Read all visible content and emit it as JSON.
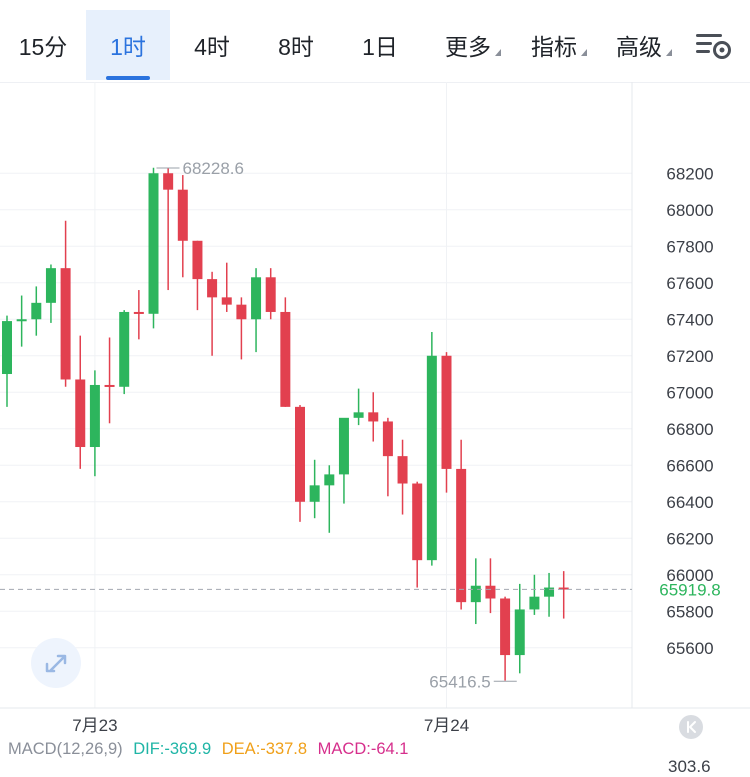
{
  "toolbar": {
    "tabs": [
      {
        "label": "15分",
        "active": false
      },
      {
        "label": "1时",
        "active": true
      },
      {
        "label": "4时",
        "active": false
      },
      {
        "label": "8时",
        "active": false
      },
      {
        "label": "1日",
        "active": false
      },
      {
        "label": "更多",
        "dropdown": true
      },
      {
        "label": "指标",
        "dropdown": true
      },
      {
        "label": "高级",
        "dropdown": true
      }
    ],
    "settings_icon": "chart-settings-icon"
  },
  "colors": {
    "up": "#2db55d",
    "down": "#e2404f",
    "accent": "#2b73de",
    "grid": "#f0f2f5",
    "axis_text": "#3c4048",
    "dif": "#1fb5a6",
    "dea": "#f0a019",
    "macd": "#d62f8c",
    "macd_label": "#8a8f99"
  },
  "chart_data": {
    "type": "candlestick",
    "interval": "1时",
    "x_labels": [
      {
        "index": 6,
        "label": "7月23"
      },
      {
        "index": 30,
        "label": "7月24"
      }
    ],
    "yticks": [
      68200,
      68000,
      67800,
      67600,
      67400,
      67200,
      67000,
      66800,
      66600,
      66400,
      66200,
      66000,
      65800,
      65600
    ],
    "ylim": [
      65270,
      68700
    ],
    "last_price": 65919.8,
    "last_price_label": "65919.8",
    "high_marker": {
      "index": 10,
      "value": 68228.6,
      "label": "68228.6"
    },
    "low_marker": {
      "index": 35,
      "value": 65416.5,
      "label": "65416.5"
    },
    "candles": [
      {
        "o": 67100,
        "h": 67420,
        "l": 66920,
        "c": 67390
      },
      {
        "o": 67390,
        "h": 67530,
        "l": 67250,
        "c": 67400
      },
      {
        "o": 67400,
        "h": 67580,
        "l": 67310,
        "c": 67490
      },
      {
        "o": 67490,
        "h": 67700,
        "l": 67380,
        "c": 67680
      },
      {
        "o": 67680,
        "h": 67940,
        "l": 67030,
        "c": 67070
      },
      {
        "o": 67070,
        "h": 67310,
        "l": 66580,
        "c": 66700
      },
      {
        "o": 66700,
        "h": 67120,
        "l": 66540,
        "c": 67040
      },
      {
        "o": 67040,
        "h": 67300,
        "l": 66830,
        "c": 67030
      },
      {
        "o": 67030,
        "h": 67450,
        "l": 66990,
        "c": 67440
      },
      {
        "o": 67440,
        "h": 67560,
        "l": 67290,
        "c": 67430
      },
      {
        "o": 67430,
        "h": 68230,
        "l": 67350,
        "c": 68200
      },
      {
        "o": 68200,
        "h": 68230,
        "l": 67560,
        "c": 68110
      },
      {
        "o": 68110,
        "h": 68190,
        "l": 67630,
        "c": 67830
      },
      {
        "o": 67830,
        "h": 67830,
        "l": 67450,
        "c": 67620
      },
      {
        "o": 67620,
        "h": 67660,
        "l": 67200,
        "c": 67520
      },
      {
        "o": 67520,
        "h": 67710,
        "l": 67440,
        "c": 67480
      },
      {
        "o": 67480,
        "h": 67520,
        "l": 67180,
        "c": 67400
      },
      {
        "o": 67400,
        "h": 67680,
        "l": 67220,
        "c": 67630
      },
      {
        "o": 67630,
        "h": 67680,
        "l": 67400,
        "c": 67440
      },
      {
        "o": 67440,
        "h": 67520,
        "l": 66920,
        "c": 66920
      },
      {
        "o": 66920,
        "h": 66930,
        "l": 66290,
        "c": 66400
      },
      {
        "o": 66400,
        "h": 66630,
        "l": 66310,
        "c": 66490
      },
      {
        "o": 66490,
        "h": 66600,
        "l": 66230,
        "c": 66550
      },
      {
        "o": 66550,
        "h": 66840,
        "l": 66390,
        "c": 66860
      },
      {
        "o": 66860,
        "h": 67020,
        "l": 66820,
        "c": 66890
      },
      {
        "o": 66890,
        "h": 67000,
        "l": 66730,
        "c": 66840
      },
      {
        "o": 66840,
        "h": 66860,
        "l": 66430,
        "c": 66650
      },
      {
        "o": 66650,
        "h": 66740,
        "l": 66330,
        "c": 66500
      },
      {
        "o": 66500,
        "h": 66510,
        "l": 65930,
        "c": 66080
      },
      {
        "o": 66080,
        "h": 67330,
        "l": 66050,
        "c": 67200
      },
      {
        "o": 67200,
        "h": 67220,
        "l": 66450,
        "c": 66580
      },
      {
        "o": 66580,
        "h": 66740,
        "l": 65810,
        "c": 65850
      },
      {
        "o": 65850,
        "h": 66090,
        "l": 65730,
        "c": 65940
      },
      {
        "o": 65940,
        "h": 66090,
        "l": 65790,
        "c": 65870
      },
      {
        "o": 65870,
        "h": 65880,
        "l": 65420,
        "c": 65560
      },
      {
        "o": 65560,
        "h": 65950,
        "l": 65460,
        "c": 65810
      },
      {
        "o": 65810,
        "h": 66000,
        "l": 65780,
        "c": 65880
      },
      {
        "o": 65880,
        "h": 66010,
        "l": 65770,
        "c": 65930
      },
      {
        "o": 65930,
        "h": 66020,
        "l": 65760,
        "c": 65920
      }
    ]
  },
  "macd": {
    "label": "MACD(12,26,9)",
    "dif": "DIF:-369.9",
    "dea": "DEA:-337.8",
    "macd": "MACD:-64.1",
    "side_value": "303.6"
  }
}
